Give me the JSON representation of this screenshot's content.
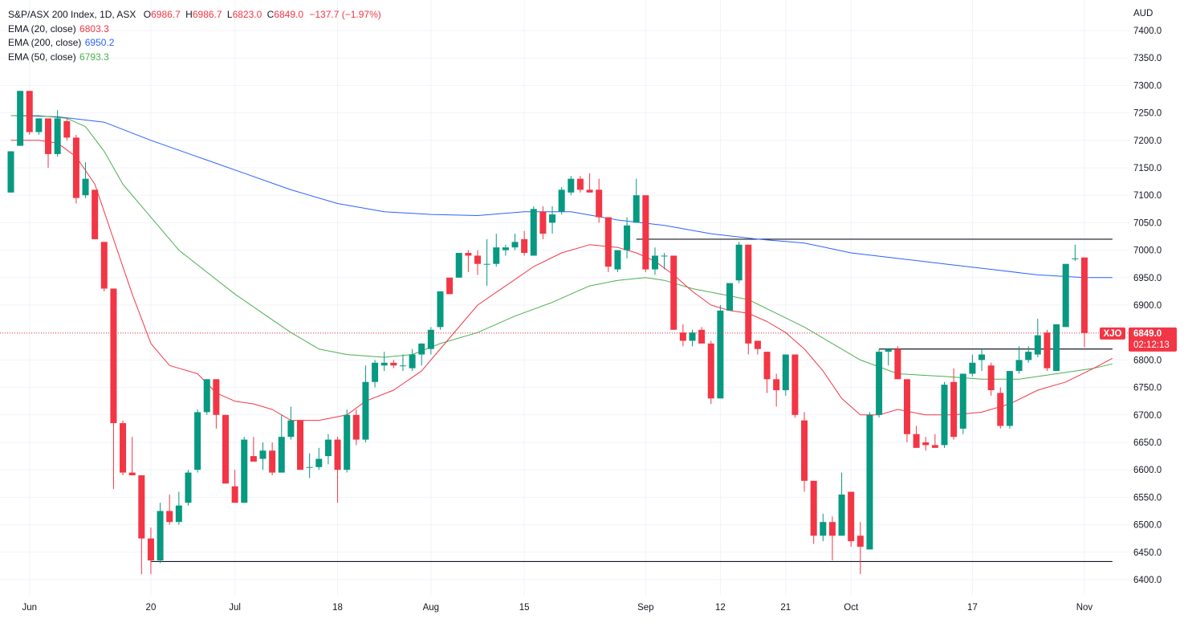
{
  "legend": {
    "symbol_title": "S&P/ASX 200 Index, 1D, ASX",
    "o_label": "O",
    "o_value": "6986.7",
    "h_label": "H",
    "h_value": "6986.7",
    "l_label": "L",
    "l_value": "6823.0",
    "c_label": "C",
    "c_value": "6849.0",
    "change": "−137.7 (−1.97%)",
    "ema20_label": "EMA (20, close)",
    "ema20_value": "6803.3",
    "ema200_label": "EMA (200, close)",
    "ema200_value": "6950.2",
    "ema50_label": "EMA (50, close)",
    "ema50_value": "6793.3"
  },
  "price_tag": {
    "symbol": "XJO",
    "price": "6849.0",
    "countdown": "02:12:13"
  },
  "colors": {
    "up": "#089981",
    "down": "#f23645",
    "ema20": "#f23645",
    "ema200": "#2962ff",
    "ema50": "#4caf50",
    "grid": "#f0f3fa",
    "text": "#131722"
  },
  "chart_data": {
    "type": "candlestick",
    "title": "S&P/ASX 200 Index, 1D, ASX",
    "currency": "AUD",
    "ylim": [
      6390,
      7430
    ],
    "y_ticks": [
      6400,
      6450,
      6500,
      6550,
      6600,
      6650,
      6700,
      6750,
      6800,
      6850,
      6900,
      6950,
      7000,
      7050,
      7100,
      7150,
      7200,
      7250,
      7300,
      7350,
      7400
    ],
    "y_tick_labels": [
      "6400.0",
      "6450.0",
      "6500.0",
      "6550.0",
      "6600.0",
      "6650.0",
      "6700.0",
      "6750.0",
      "6800.0",
      "6850.0",
      "6900.0",
      "6950.0",
      "7000.0",
      "7050.0",
      "7100.0",
      "7150.0",
      "7200.0",
      "7250.0",
      "7300.0",
      "7350.0",
      "7400.0"
    ],
    "x_ticks": [
      {
        "index": 2,
        "label": "Jun"
      },
      {
        "index": 15,
        "label": "20"
      },
      {
        "index": 24,
        "label": "Jul"
      },
      {
        "index": 35,
        "label": "18"
      },
      {
        "index": 45,
        "label": "Aug"
      },
      {
        "index": 55,
        "label": "15"
      },
      {
        "index": 68,
        "label": "Sep"
      },
      {
        "index": 76,
        "label": "12"
      },
      {
        "index": 83,
        "label": "21"
      },
      {
        "index": 90,
        "label": "Oct"
      },
      {
        "index": 103,
        "label": "17"
      },
      {
        "index": 115,
        "label": "Nov"
      }
    ],
    "last_price": 6849.0,
    "candles": [
      {
        "o": 7105,
        "h": 7180,
        "l": 7105,
        "c": 7180
      },
      {
        "o": 7190,
        "h": 7290,
        "l": 7190,
        "c": 7290
      },
      {
        "o": 7290,
        "h": 7290,
        "l": 7210,
        "c": 7215
      },
      {
        "o": 7215,
        "h": 7240,
        "l": 7210,
        "c": 7240
      },
      {
        "o": 7240,
        "h": 7240,
        "l": 7150,
        "c": 7175
      },
      {
        "o": 7175,
        "h": 7255,
        "l": 7170,
        "c": 7240
      },
      {
        "o": 7235,
        "h": 7240,
        "l": 7200,
        "c": 7205
      },
      {
        "o": 7205,
        "h": 7210,
        "l": 7085,
        "c": 7095
      },
      {
        "o": 7100,
        "h": 7160,
        "l": 7095,
        "c": 7130
      },
      {
        "o": 7110,
        "h": 7110,
        "l": 7020,
        "c": 7020
      },
      {
        "o": 7015,
        "h": 7015,
        "l": 6925,
        "c": 6930
      },
      {
        "o": 6930,
        "h": 6930,
        "l": 6565,
        "c": 6685
      },
      {
        "o": 6685,
        "h": 6690,
        "l": 6590,
        "c": 6595
      },
      {
        "o": 6595,
        "h": 6660,
        "l": 6590,
        "c": 6590
      },
      {
        "o": 6590,
        "h": 6590,
        "l": 6410,
        "c": 6475
      },
      {
        "o": 6475,
        "h": 6495,
        "l": 6410,
        "c": 6435
      },
      {
        "o": 6435,
        "h": 6540,
        "l": 6430,
        "c": 6525
      },
      {
        "o": 6525,
        "h": 6555,
        "l": 6500,
        "c": 6505
      },
      {
        "o": 6505,
        "h": 6560,
        "l": 6500,
        "c": 6535
      },
      {
        "o": 6540,
        "h": 6600,
        "l": 6535,
        "c": 6595
      },
      {
        "o": 6600,
        "h": 6710,
        "l": 6595,
        "c": 6705
      },
      {
        "o": 6705,
        "h": 6765,
        "l": 6700,
        "c": 6765
      },
      {
        "o": 6765,
        "h": 6765,
        "l": 6675,
        "c": 6700
      },
      {
        "o": 6700,
        "h": 6700,
        "l": 6575,
        "c": 6575
      },
      {
        "o": 6570,
        "h": 6600,
        "l": 6540,
        "c": 6540
      },
      {
        "o": 6540,
        "h": 6660,
        "l": 6540,
        "c": 6655
      },
      {
        "o": 6625,
        "h": 6660,
        "l": 6615,
        "c": 6615
      },
      {
        "o": 6620,
        "h": 6650,
        "l": 6600,
        "c": 6635
      },
      {
        "o": 6635,
        "h": 6650,
        "l": 6590,
        "c": 6595
      },
      {
        "o": 6595,
        "h": 6700,
        "l": 6595,
        "c": 6660
      },
      {
        "o": 6660,
        "h": 6715,
        "l": 6655,
        "c": 6690
      },
      {
        "o": 6690,
        "h": 6690,
        "l": 6600,
        "c": 6600
      },
      {
        "o": 6605,
        "h": 6630,
        "l": 6585,
        "c": 6605
      },
      {
        "o": 6605,
        "h": 6640,
        "l": 6600,
        "c": 6620
      },
      {
        "o": 6625,
        "h": 6665,
        "l": 6610,
        "c": 6655
      },
      {
        "o": 6655,
        "h": 6660,
        "l": 6540,
        "c": 6600
      },
      {
        "o": 6600,
        "h": 6710,
        "l": 6595,
        "c": 6700
      },
      {
        "o": 6700,
        "h": 6710,
        "l": 6645,
        "c": 6655
      },
      {
        "o": 6655,
        "h": 6790,
        "l": 6650,
        "c": 6760
      },
      {
        "o": 6760,
        "h": 6800,
        "l": 6750,
        "c": 6795
      },
      {
        "o": 6790,
        "h": 6815,
        "l": 6780,
        "c": 6795
      },
      {
        "o": 6795,
        "h": 6800,
        "l": 6785,
        "c": 6790
      },
      {
        "o": 6790,
        "h": 6810,
        "l": 6780,
        "c": 6790
      },
      {
        "o": 6785,
        "h": 6820,
        "l": 6780,
        "c": 6810
      },
      {
        "o": 6810,
        "h": 6830,
        "l": 6790,
        "c": 6830
      },
      {
        "o": 6820,
        "h": 6860,
        "l": 6810,
        "c": 6855
      },
      {
        "o": 6860,
        "h": 6925,
        "l": 6855,
        "c": 6925
      },
      {
        "o": 6950,
        "h": 6950,
        "l": 6920,
        "c": 6920
      },
      {
        "o": 6950,
        "h": 6995,
        "l": 6950,
        "c": 6995
      },
      {
        "o": 6995,
        "h": 7000,
        "l": 6960,
        "c": 6990
      },
      {
        "o": 6990,
        "h": 7000,
        "l": 6955,
        "c": 6975
      },
      {
        "o": 6975,
        "h": 7020,
        "l": 6935,
        "c": 6975
      },
      {
        "o": 6975,
        "h": 7030,
        "l": 6970,
        "c": 7005
      },
      {
        "o": 7000,
        "h": 7010,
        "l": 6990,
        "c": 7005
      },
      {
        "o": 7005,
        "h": 7030,
        "l": 7000,
        "c": 7015
      },
      {
        "o": 7020,
        "h": 7035,
        "l": 6990,
        "c": 6995
      },
      {
        "o": 6990,
        "h": 7080,
        "l": 6990,
        "c": 7075
      },
      {
        "o": 7070,
        "h": 7080,
        "l": 7020,
        "c": 7030
      },
      {
        "o": 7050,
        "h": 7080,
        "l": 7030,
        "c": 7065
      },
      {
        "o": 7070,
        "h": 7115,
        "l": 7065,
        "c": 7110
      },
      {
        "o": 7105,
        "h": 7135,
        "l": 7100,
        "c": 7130
      },
      {
        "o": 7130,
        "h": 7135,
        "l": 7105,
        "c": 7110
      },
      {
        "o": 7110,
        "h": 7140,
        "l": 7105,
        "c": 7105
      },
      {
        "o": 7110,
        "h": 7130,
        "l": 7050,
        "c": 7060
      },
      {
        "o": 7060,
        "h": 7060,
        "l": 6960,
        "c": 6970
      },
      {
        "o": 6965,
        "h": 7000,
        "l": 6960,
        "c": 7000
      },
      {
        "o": 7000,
        "h": 7060,
        "l": 6985,
        "c": 7045
      },
      {
        "o": 7050,
        "h": 7130,
        "l": 7050,
        "c": 7100
      },
      {
        "o": 7100,
        "h": 7100,
        "l": 6960,
        "c": 6965
      },
      {
        "o": 6965,
        "h": 7005,
        "l": 6955,
        "c": 6990
      },
      {
        "o": 6990,
        "h": 6995,
        "l": 6965,
        "c": 6990
      },
      {
        "o": 6990,
        "h": 6990,
        "l": 6855,
        "c": 6855
      },
      {
        "o": 6850,
        "h": 6865,
        "l": 6825,
        "c": 6835
      },
      {
        "o": 6835,
        "h": 6855,
        "l": 6825,
        "c": 6850
      },
      {
        "o": 6855,
        "h": 6860,
        "l": 6830,
        "c": 6830
      },
      {
        "o": 6830,
        "h": 6835,
        "l": 6720,
        "c": 6730
      },
      {
        "o": 6730,
        "h": 6900,
        "l": 6730,
        "c": 6890
      },
      {
        "o": 6890,
        "h": 6935,
        "l": 6890,
        "c": 6940
      },
      {
        "o": 6945,
        "h": 7015,
        "l": 6940,
        "c": 7010
      },
      {
        "o": 7010,
        "h": 7010,
        "l": 6810,
        "c": 6830
      },
      {
        "o": 6835,
        "h": 6835,
        "l": 6810,
        "c": 6820
      },
      {
        "o": 6815,
        "h": 6815,
        "l": 6740,
        "c": 6765
      },
      {
        "o": 6765,
        "h": 6775,
        "l": 6715,
        "c": 6745
      },
      {
        "o": 6745,
        "h": 6810,
        "l": 6735,
        "c": 6810
      },
      {
        "o": 6810,
        "h": 6810,
        "l": 6695,
        "c": 6700
      },
      {
        "o": 6690,
        "h": 6705,
        "l": 6560,
        "c": 6580
      },
      {
        "o": 6580,
        "h": 6580,
        "l": 6465,
        "c": 6480
      },
      {
        "o": 6480,
        "h": 6520,
        "l": 6470,
        "c": 6505
      },
      {
        "o": 6505,
        "h": 6515,
        "l": 6435,
        "c": 6480
      },
      {
        "o": 6480,
        "h": 6595,
        "l": 6480,
        "c": 6555
      },
      {
        "o": 6560,
        "h": 6560,
        "l": 6460,
        "c": 6470
      },
      {
        "o": 6480,
        "h": 6505,
        "l": 6410,
        "c": 6460
      },
      {
        "o": 6455,
        "h": 6705,
        "l": 6455,
        "c": 6700
      },
      {
        "o": 6700,
        "h": 6820,
        "l": 6695,
        "c": 6815
      },
      {
        "o": 6815,
        "h": 6820,
        "l": 6790,
        "c": 6820
      },
      {
        "o": 6820,
        "h": 6825,
        "l": 6765,
        "c": 6765
      },
      {
        "o": 6765,
        "h": 6765,
        "l": 6650,
        "c": 6665
      },
      {
        "o": 6665,
        "h": 6680,
        "l": 6640,
        "c": 6640
      },
      {
        "o": 6650,
        "h": 6660,
        "l": 6635,
        "c": 6645
      },
      {
        "o": 6645,
        "h": 6665,
        "l": 6640,
        "c": 6640
      },
      {
        "o": 6645,
        "h": 6760,
        "l": 6640,
        "c": 6755
      },
      {
        "o": 6760,
        "h": 6785,
        "l": 6655,
        "c": 6660
      },
      {
        "o": 6675,
        "h": 6775,
        "l": 6665,
        "c": 6775
      },
      {
        "o": 6775,
        "h": 6810,
        "l": 6770,
        "c": 6795
      },
      {
        "o": 6800,
        "h": 6820,
        "l": 6780,
        "c": 6810
      },
      {
        "o": 6790,
        "h": 6795,
        "l": 6735,
        "c": 6745
      },
      {
        "o": 6740,
        "h": 6750,
        "l": 6675,
        "c": 6680
      },
      {
        "o": 6680,
        "h": 6775,
        "l": 6675,
        "c": 6780
      },
      {
        "o": 6780,
        "h": 6825,
        "l": 6775,
        "c": 6800
      },
      {
        "o": 6800,
        "h": 6825,
        "l": 6795,
        "c": 6815
      },
      {
        "o": 6810,
        "h": 6875,
        "l": 6805,
        "c": 6845
      },
      {
        "o": 6850,
        "h": 6855,
        "l": 6780,
        "c": 6785
      },
      {
        "o": 6780,
        "h": 6865,
        "l": 6780,
        "c": 6865
      },
      {
        "o": 6860,
        "h": 6970,
        "l": 6860,
        "c": 6975
      },
      {
        "o": 6985,
        "h": 7010,
        "l": 6980,
        "c": 6985
      },
      {
        "o": 6986.7,
        "h": 6986.7,
        "l": 6823.0,
        "c": 6849.0
      }
    ],
    "ema200": [
      [
        0,
        7245
      ],
      [
        5,
        7243
      ],
      [
        10,
        7233
      ],
      [
        15,
        7200
      ],
      [
        20,
        7170
      ],
      [
        25,
        7140
      ],
      [
        30,
        7110
      ],
      [
        35,
        7085
      ],
      [
        40,
        7070
      ],
      [
        45,
        7065
      ],
      [
        50,
        7063
      ],
      [
        55,
        7070
      ],
      [
        60,
        7070
      ],
      [
        65,
        7055
      ],
      [
        70,
        7045
      ],
      [
        75,
        7030
      ],
      [
        80,
        7020
      ],
      [
        85,
        7013
      ],
      [
        90,
        6995
      ],
      [
        95,
        6985
      ],
      [
        100,
        6975
      ],
      [
        105,
        6965
      ],
      [
        110,
        6955
      ],
      [
        115,
        6950
      ],
      [
        118,
        6950
      ]
    ],
    "ema50": [
      [
        0,
        7245
      ],
      [
        3,
        7245
      ],
      [
        6,
        7240
      ],
      [
        8,
        7225
      ],
      [
        10,
        7180
      ],
      [
        12,
        7120
      ],
      [
        15,
        7060
      ],
      [
        18,
        7000
      ],
      [
        21,
        6960
      ],
      [
        24,
        6920
      ],
      [
        27,
        6885
      ],
      [
        30,
        6850
      ],
      [
        33,
        6820
      ],
      [
        36,
        6810
      ],
      [
        40,
        6805
      ],
      [
        43,
        6810
      ],
      [
        46,
        6830
      ],
      [
        50,
        6850
      ],
      [
        54,
        6880
      ],
      [
        58,
        6905
      ],
      [
        62,
        6935
      ],
      [
        65,
        6945
      ],
      [
        68,
        6950
      ],
      [
        70,
        6945
      ],
      [
        73,
        6930
      ],
      [
        76,
        6920
      ],
      [
        79,
        6910
      ],
      [
        82,
        6885
      ],
      [
        85,
        6860
      ],
      [
        88,
        6830
      ],
      [
        91,
        6800
      ],
      [
        95,
        6775
      ],
      [
        100,
        6770
      ],
      [
        104,
        6765
      ],
      [
        108,
        6765
      ],
      [
        112,
        6775
      ],
      [
        116,
        6785
      ],
      [
        118,
        6793
      ]
    ],
    "ema20": [
      [
        0,
        7200
      ],
      [
        3,
        7200
      ],
      [
        5,
        7195
      ],
      [
        7,
        7170
      ],
      [
        9,
        7120
      ],
      [
        11,
        7020
      ],
      [
        13,
        6920
      ],
      [
        15,
        6830
      ],
      [
        17,
        6790
      ],
      [
        18,
        6785
      ],
      [
        20,
        6775
      ],
      [
        22,
        6740
      ],
      [
        24,
        6725
      ],
      [
        26,
        6720
      ],
      [
        28,
        6710
      ],
      [
        30,
        6690
      ],
      [
        33,
        6690
      ],
      [
        36,
        6700
      ],
      [
        38,
        6725
      ],
      [
        41,
        6745
      ],
      [
        44,
        6780
      ],
      [
        47,
        6840
      ],
      [
        50,
        6900
      ],
      [
        53,
        6935
      ],
      [
        56,
        6970
      ],
      [
        59,
        6995
      ],
      [
        62,
        7010
      ],
      [
        65,
        7005
      ],
      [
        67,
        6995
      ],
      [
        69,
        6980
      ],
      [
        71,
        6955
      ],
      [
        73,
        6925
      ],
      [
        75,
        6900
      ],
      [
        77,
        6890
      ],
      [
        79,
        6885
      ],
      [
        81,
        6870
      ],
      [
        83,
        6850
      ],
      [
        85,
        6820
      ],
      [
        87,
        6780
      ],
      [
        89,
        6730
      ],
      [
        91,
        6700
      ],
      [
        93,
        6700
      ],
      [
        95,
        6710
      ],
      [
        98,
        6700
      ],
      [
        101,
        6700
      ],
      [
        104,
        6705
      ],
      [
        107,
        6720
      ],
      [
        110,
        6745
      ],
      [
        113,
        6760
      ],
      [
        116,
        6785
      ],
      [
        118,
        6803
      ]
    ],
    "h_lines": [
      {
        "price": 7020,
        "from": 67,
        "to": 118
      },
      {
        "price": 6820,
        "from": 93,
        "to": 118
      },
      {
        "price": 6433,
        "from": 15,
        "to": 118
      }
    ]
  }
}
